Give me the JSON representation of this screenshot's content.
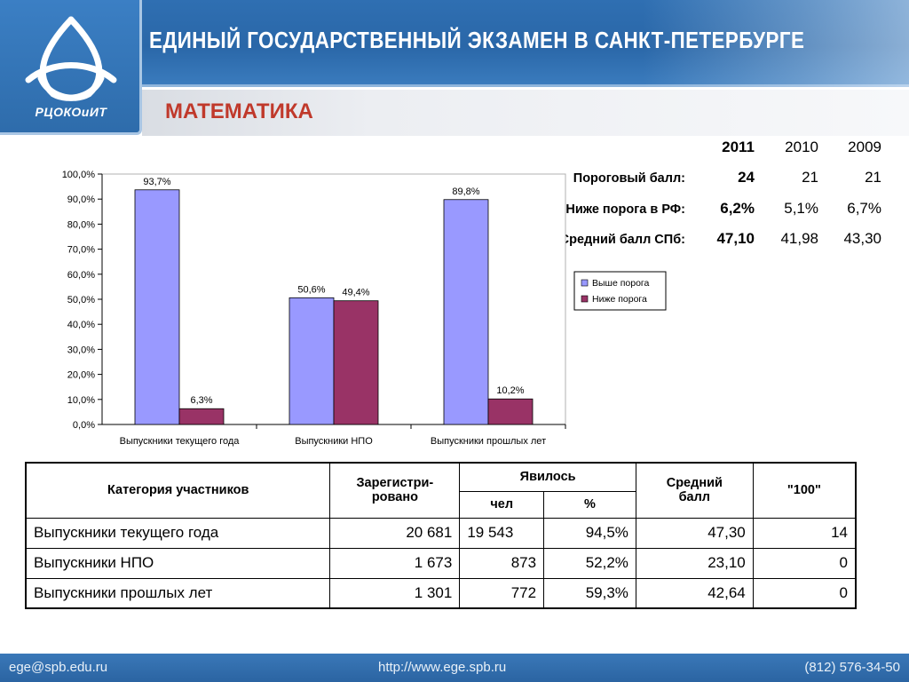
{
  "header": {
    "title": "ЕДИНЫЙ ГОСУДАРСТВЕННЫЙ ЭКЗАМЕН В САНКТ-ПЕТЕРБУРГЕ",
    "logo_text": "РЦОКОиИТ",
    "logo_icon": "triquetra-icon"
  },
  "subject": "МАТЕМАТИКА",
  "stats": {
    "years": [
      "2011",
      "2010",
      "2009"
    ],
    "rows": [
      {
        "label": "Пороговый балл:",
        "values": [
          "24",
          "21",
          "21"
        ]
      },
      {
        "label": "Ниже порога в РФ:",
        "values": [
          "6,2%",
          "5,1%",
          "6,7%"
        ]
      },
      {
        "label": "Средний балл СПб:",
        "values": [
          "47,10",
          "41,98",
          "43,30"
        ]
      }
    ]
  },
  "chart_data": {
    "type": "bar",
    "categories": [
      "Выпускники текущего года",
      "Выпускники НПО",
      "Выпускники прошлых лет"
    ],
    "series": [
      {
        "name": "Выше порога",
        "values": [
          93.7,
          50.6,
          89.8
        ],
        "labels": [
          "93,7%",
          "50,6%",
          "89,8%"
        ],
        "color": "#9999ff"
      },
      {
        "name": "Ниже порога",
        "values": [
          6.3,
          49.4,
          10.2
        ],
        "labels": [
          "6,3%",
          "49,4%",
          "10,2%"
        ],
        "color": "#993366"
      }
    ],
    "yticks": [
      "0,0%",
      "10,0%",
      "20,0%",
      "30,0%",
      "40,0%",
      "50,0%",
      "60,0%",
      "70,0%",
      "80,0%",
      "90,0%",
      "100,0%"
    ],
    "ylim": [
      0,
      100
    ],
    "legend_position": "right",
    "grid": false
  },
  "table": {
    "headers": {
      "category": "Категория участников",
      "registered": "Зарегистри-рованo",
      "attended": "Явилось",
      "people": "чел",
      "percent": "%",
      "avg": "Средний балл",
      "hundred": "\"100\""
    },
    "rows": [
      {
        "category": "Выпускники текущего года",
        "registered": "20 681",
        "people": "19 543",
        "percent": "94,5%",
        "avg": "47,30",
        "hundred": "14"
      },
      {
        "category": "Выпускники НПО",
        "registered": "1 673",
        "people": "873",
        "percent": "52,2%",
        "avg": "23,10",
        "hundred": "0"
      },
      {
        "category": "Выпускники прошлых лет",
        "registered": "1 301",
        "people": "772",
        "percent": "59,3%",
        "avg": "42,64",
        "hundred": "0"
      }
    ]
  },
  "footer": {
    "email": "ege@spb.edu.ru",
    "url": "http://www.ege.spb.ru",
    "phone": "(812) 576-34-50"
  }
}
